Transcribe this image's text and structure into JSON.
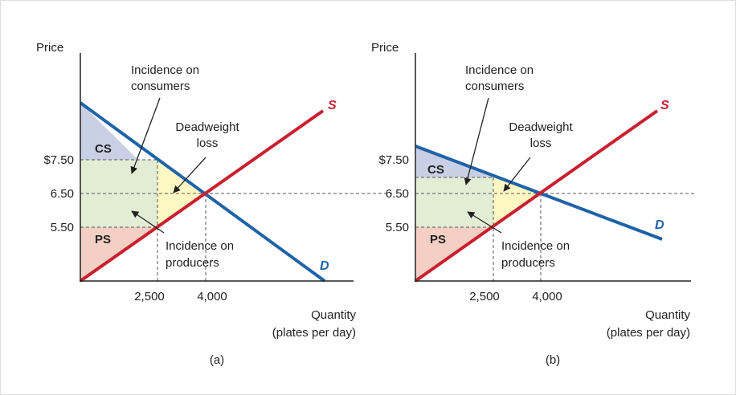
{
  "colors": {
    "supply": "#c8202f",
    "demand": "#1f63a8",
    "cs_fill": "#c9d0e6",
    "ps_fill": "#f4cfc4",
    "dwl_fill": "#fdf7c4",
    "incidence_fill": "#e3edd4",
    "axis": "#222222",
    "dash": "#555555"
  },
  "panels": [
    {
      "caption": "(a)",
      "y_axis_label": "Price",
      "x_axis_label_line1": "Quantity",
      "x_axis_label_line2": "(plates per day)",
      "price_ticks": [
        "$7.50",
        "6.50",
        "5.50"
      ],
      "quantity_ticks": [
        "2,500",
        "4,000"
      ],
      "supply_label": "S",
      "demand_label": "D",
      "cs_label": "CS",
      "ps_label": "PS",
      "ann_consumers_line1": "Incidence on",
      "ann_consumers_line2": "consumers",
      "ann_dwl_line1": "Deadweight",
      "ann_dwl_line2": "loss",
      "ann_producers_line1": "Incidence on",
      "ann_producers_line2": "producers"
    },
    {
      "caption": "(b)",
      "y_axis_label": "Price",
      "x_axis_label_line1": "Quantity",
      "x_axis_label_line2": "(plates per day)",
      "price_ticks": [
        "$7.50",
        "6.50",
        "5.50"
      ],
      "quantity_ticks": [
        "2,500",
        "4,000"
      ],
      "supply_label": "S",
      "demand_label": "D",
      "cs_label": "CS",
      "ps_label": "PS",
      "ann_consumers_line1": "Incidence on",
      "ann_consumers_line2": "consumers",
      "ann_dwl_line1": "Deadweight",
      "ann_dwl_line2": "loss",
      "ann_producers_line1": "Incidence on",
      "ann_producers_line2": "producers"
    }
  ]
}
